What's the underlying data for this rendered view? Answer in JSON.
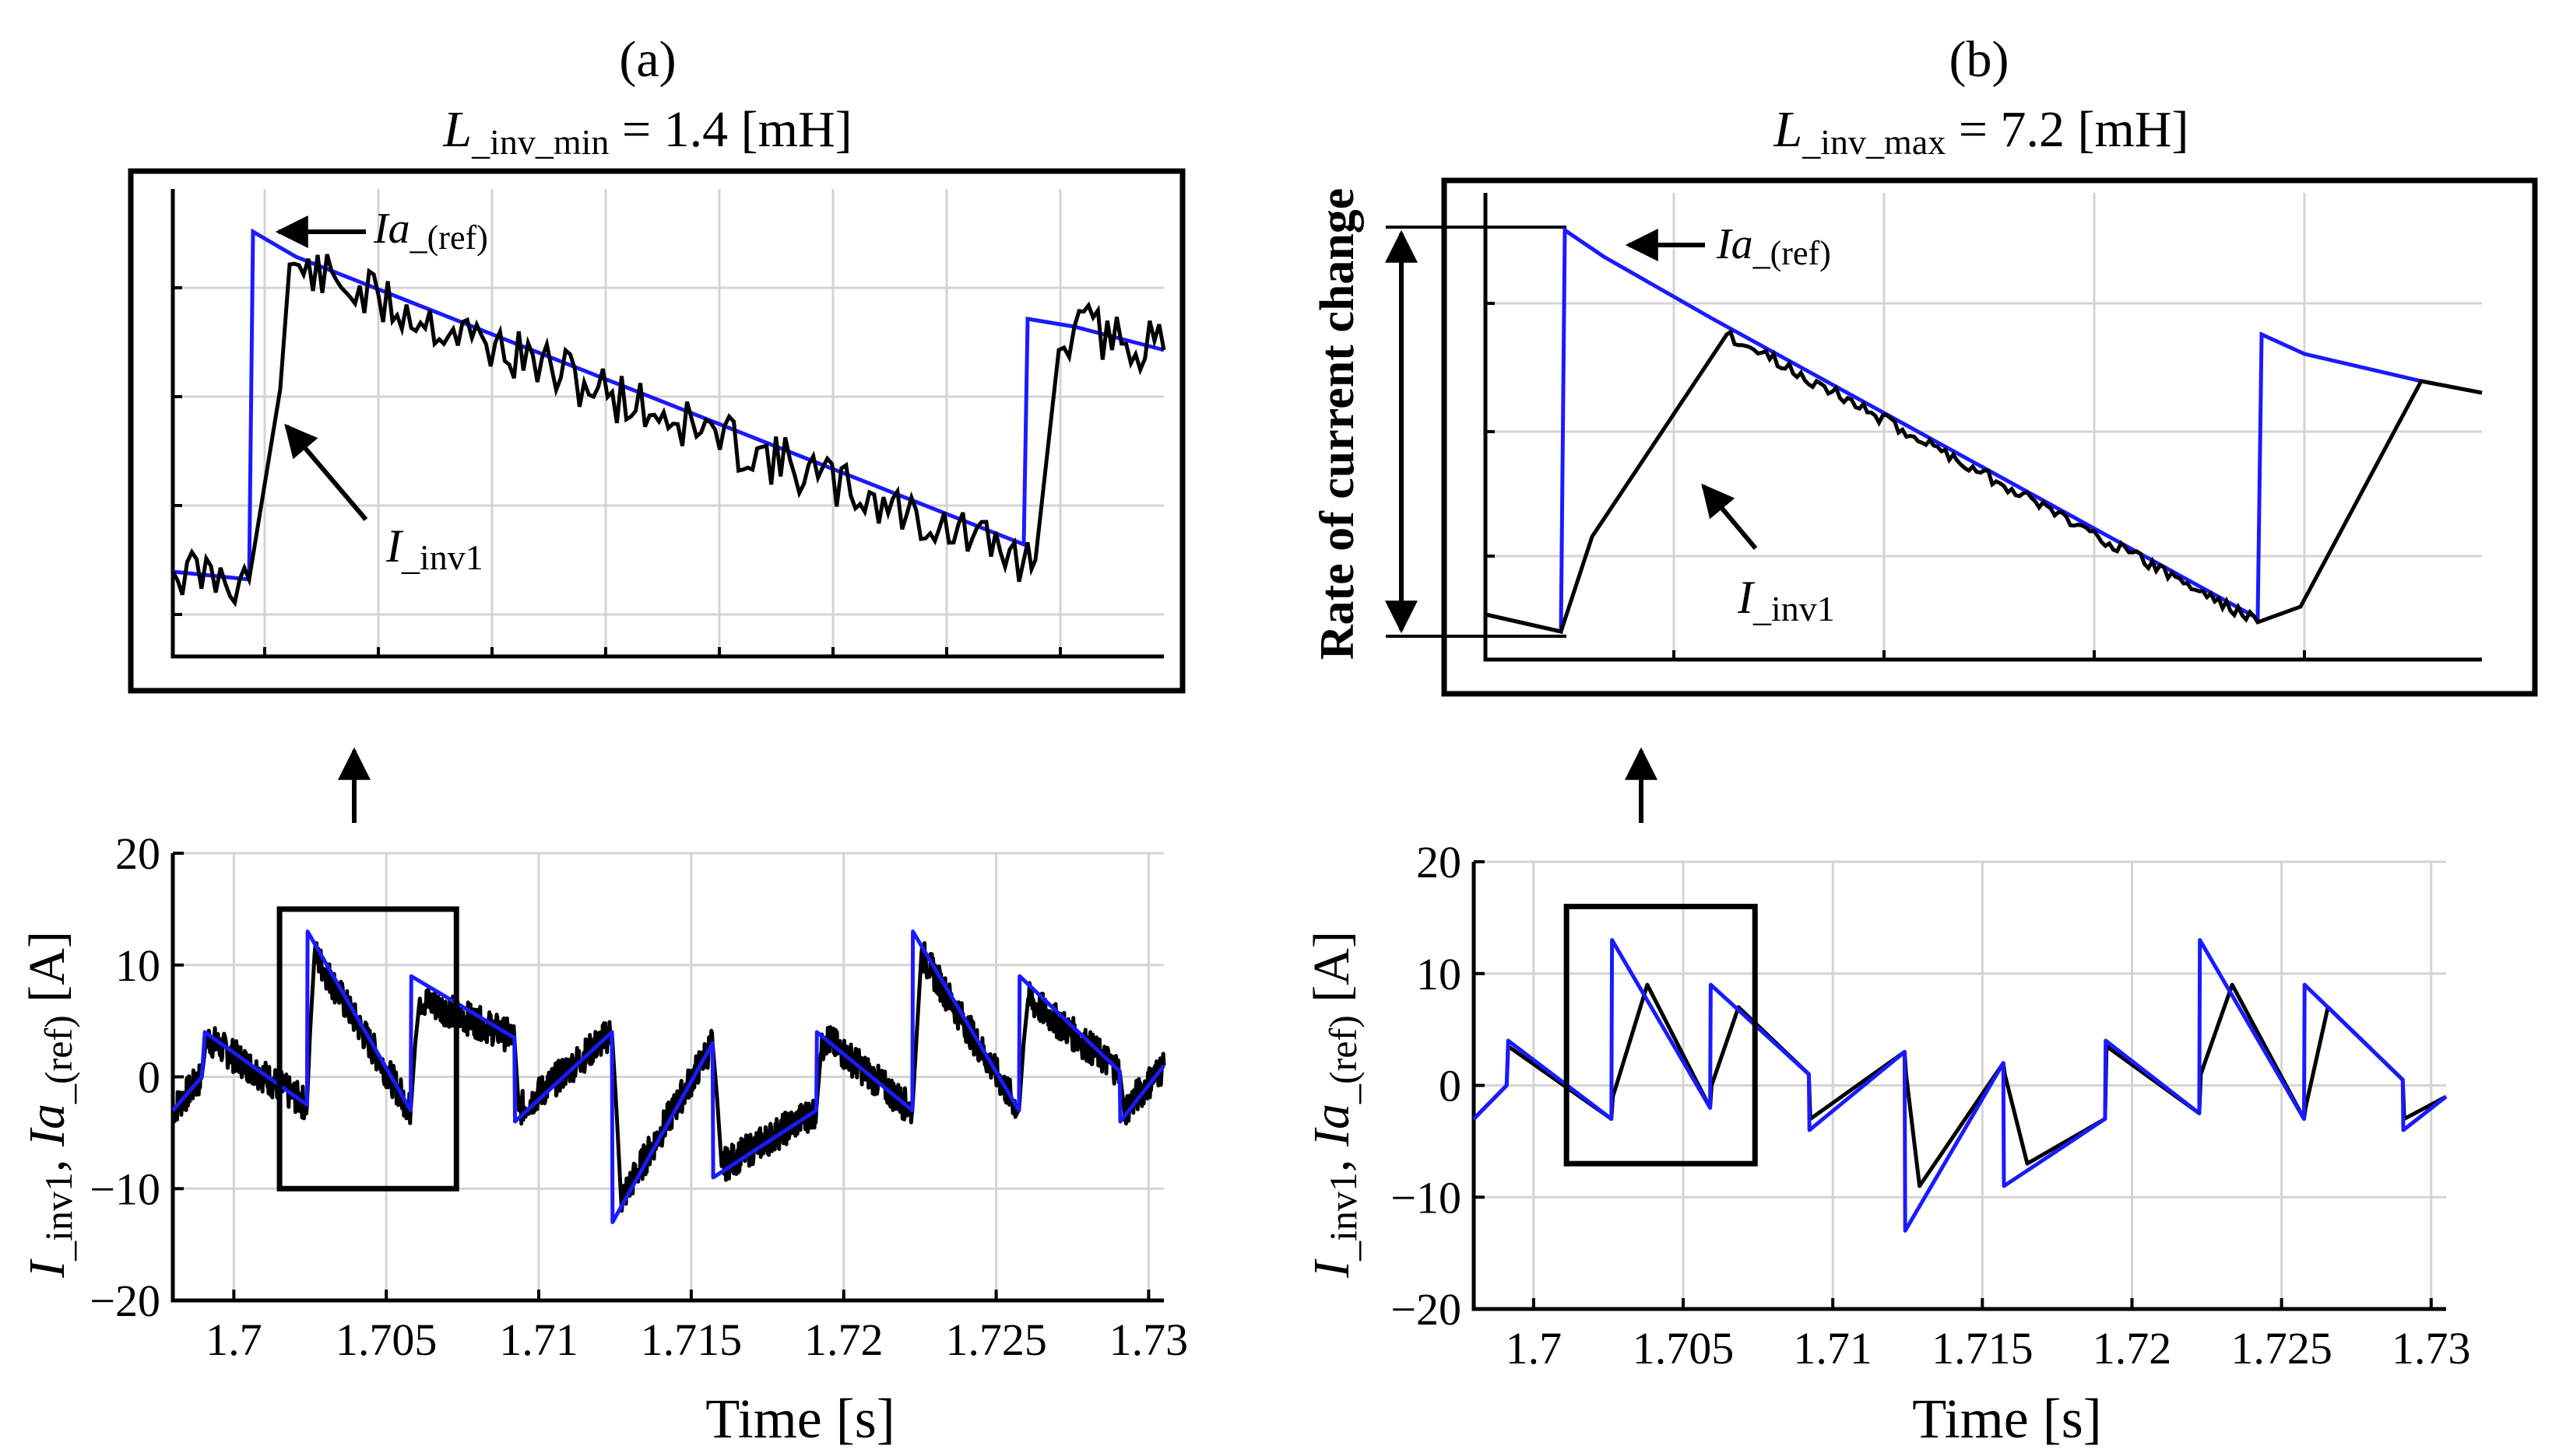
{
  "panels": [
    {
      "label": "(a)",
      "title_sym": "L",
      "title_sub": "_inv_min",
      "title_rest": " = 1.4 [mH]",
      "ref_annotation": "Ia_(ref)",
      "inv_annotation": "I_inv1"
    },
    {
      "label": "(b)",
      "title_sym": "L",
      "title_sub": "_inv_max",
      "title_rest": " = 7.2 [mH]",
      "ref_annotation": "Ia_(ref)",
      "inv_annotation": "I_inv1",
      "vertical_annotation": "Rate of current change"
    }
  ],
  "chart_data": [
    {
      "type": "line",
      "panel": "(a)",
      "xlabel": "Time [s]",
      "ylabel": "I_inv1, Ia_(ref) [A]",
      "xlim": [
        1.698,
        1.7305
      ],
      "ylim": [
        -20,
        20
      ],
      "xticks": [
        1.7,
        1.705,
        1.71,
        1.715,
        1.72,
        1.725,
        1.73
      ],
      "xtick_labels": [
        "1.7",
        "1.705",
        "1.71",
        "1.715",
        "1.72",
        "1.725",
        "1.73"
      ],
      "yticks": [
        -20,
        -10,
        0,
        10,
        20
      ],
      "ytick_labels": [
        "−20",
        "−10",
        "0",
        "10",
        "20"
      ],
      "grid": true,
      "zoom_box": {
        "x": [
          1.7015,
          1.7073
        ],
        "y": [
          -10,
          15
        ]
      },
      "series": [
        {
          "name": "Ia_(ref)",
          "color": "#1a1aff",
          "x": [
            1.698,
            1.69895,
            1.69905,
            1.7024,
            1.70242,
            1.7058,
            1.70582,
            1.7092,
            1.70922,
            1.7124,
            1.71242,
            1.7157,
            1.71572,
            1.7191,
            1.71912,
            1.72225,
            1.72227,
            1.72575,
            1.72577,
            1.72905,
            1.72907,
            1.7305
          ],
          "y": [
            -3,
            0,
            4,
            -2.5,
            13,
            -3,
            9,
            3.5,
            -4,
            4,
            -13,
            3,
            -9,
            -3,
            4,
            -3,
            13,
            -3,
            9,
            0.5,
            -4,
            1
          ]
        },
        {
          "name": "I_inv1",
          "color": "#000000",
          "noise_amplitude": 1.5,
          "x": [
            1.698,
            1.69895,
            1.6991,
            1.7024,
            1.7025,
            1.70265,
            1.7058,
            1.70595,
            1.7061,
            1.7092,
            1.70935,
            1.7124,
            1.71255,
            1.7127,
            1.7157,
            1.71585,
            1.716,
            1.7191,
            1.71925,
            1.7194,
            1.72225,
            1.7224,
            1.72255,
            1.72575,
            1.7259,
            1.72605,
            1.72905,
            1.7292,
            1.7305
          ],
          "y": [
            -3,
            0,
            3.5,
            -2.5,
            4,
            11,
            -3,
            3,
            7,
            3.5,
            -3,
            4,
            -3,
            -11,
            3,
            -2,
            -8,
            -3,
            2,
            3.5,
            -3,
            4,
            11,
            -3,
            3,
            7,
            0.5,
            -3,
            1
          ]
        }
      ]
    },
    {
      "type": "line",
      "panel": "(b)",
      "xlabel": "Time [s]",
      "ylabel": "I_inv1, Ia_(ref) [A]",
      "xlim": [
        1.698,
        1.7305
      ],
      "ylim": [
        -20,
        20
      ],
      "xticks": [
        1.7,
        1.705,
        1.71,
        1.715,
        1.72,
        1.725,
        1.73
      ],
      "xtick_labels": [
        "1.7",
        "1.705",
        "1.71",
        "1.715",
        "1.72",
        "1.725",
        "1.73"
      ],
      "yticks": [
        -20,
        -10,
        0,
        10,
        20
      ],
      "ytick_labels": [
        "−20",
        "−10",
        "0",
        "10",
        "20"
      ],
      "grid": true,
      "zoom_box": {
        "x": [
          1.7011,
          1.7074
        ],
        "y": [
          -7,
          16
        ]
      },
      "series": [
        {
          "name": "Ia_(ref)",
          "color": "#1a1aff",
          "x": [
            1.698,
            1.6991,
            1.69915,
            1.7026,
            1.70262,
            1.7059,
            1.70592,
            1.7092,
            1.70922,
            1.7124,
            1.71242,
            1.7157,
            1.71572,
            1.7191,
            1.71912,
            1.72225,
            1.72227,
            1.72575,
            1.72577,
            1.72905,
            1.72907,
            1.7305
          ],
          "y": [
            -3,
            0,
            4,
            -3,
            13,
            -2,
            9,
            1,
            -4,
            3,
            -13,
            2,
            -9,
            -3,
            4,
            -2.5,
            13,
            -3,
            9,
            0.5,
            -4,
            -1
          ]
        },
        {
          "name": "I_inv1",
          "color": "#000000",
          "x": [
            1.698,
            1.6991,
            1.69915,
            1.7026,
            1.70265,
            1.7038,
            1.7059,
            1.70595,
            1.70685,
            1.7092,
            1.70925,
            1.7124,
            1.71245,
            1.7129,
            1.7157,
            1.71575,
            1.7165,
            1.7191,
            1.71915,
            1.72225,
            1.7223,
            1.72335,
            1.72575,
            1.7258,
            1.72655,
            1.72905,
            1.7291,
            1.7305
          ],
          "y": [
            -3,
            0,
            3.5,
            -3,
            -1,
            9,
            -2,
            0,
            7,
            1,
            -3,
            3,
            1,
            -9,
            2,
            1,
            -7,
            -3,
            3.5,
            -2.5,
            1,
            9,
            -3,
            -2,
            7,
            0.5,
            -3,
            -1
          ]
        }
      ]
    }
  ]
}
